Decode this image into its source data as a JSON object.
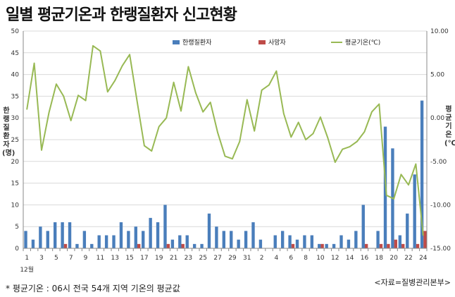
{
  "title": "일별 평균기온과 한랭질환자 신고현황",
  "left_axis_title": "한랭질환자(명)",
  "right_axis_title": "평균기온(℃)",
  "footnote": "* 평균기온 : 06시 전국 54개 지역 기온의 평균값",
  "source": "<자료=질병관리본부>",
  "month_label": "12월",
  "colors": {
    "patients": "#4a7ebb",
    "deaths": "#be4b48",
    "temperature": "#98b954",
    "axis": "#888888",
    "grid": "#d9d9d9"
  },
  "chart_data": {
    "type": "bar",
    "title": "일별 평균기온과 한랭질환자 신고현황",
    "xlabel": "",
    "ylabel": "한랭질환자(명)",
    "y2label": "평균기온(℃)",
    "ylim": [
      0,
      50
    ],
    "y2lim": [
      -15,
      10
    ],
    "yticks": [
      "0",
      "5",
      "10",
      "15",
      "20",
      "25",
      "30",
      "35",
      "40",
      "45",
      "50"
    ],
    "y2ticks": [
      "-15.00",
      "-10.00",
      "-5.00",
      "0.00",
      "5.00",
      "10.00"
    ],
    "categories": [
      "1",
      "2",
      "3",
      "4",
      "5",
      "6",
      "7",
      "8",
      "9",
      "10",
      "11",
      "12",
      "13",
      "14",
      "15",
      "16",
      "17",
      "18",
      "19",
      "20",
      "21",
      "22",
      "23",
      "24",
      "25",
      "26",
      "27",
      "28",
      "29",
      "30",
      "31",
      "1",
      "2",
      "3",
      "4",
      "5",
      "6",
      "7",
      "8",
      "9",
      "10",
      "11",
      "12",
      "13",
      "14",
      "15",
      "16",
      "17",
      "18",
      "19",
      "20",
      "21",
      "22",
      "23",
      "24"
    ],
    "xtick_labels": [
      "1",
      "3",
      "5",
      "7",
      "9",
      "11",
      "13",
      "15",
      "17",
      "19",
      "21",
      "23",
      "25",
      "27",
      "29",
      "31",
      "2",
      "4",
      "6",
      "8",
      "10",
      "12",
      "14",
      "16",
      "18",
      "20",
      "22",
      "24"
    ],
    "legend": [
      "한랭질환자",
      "사망자",
      "평균기온(℃)"
    ],
    "legend_position": "top-right",
    "series": [
      {
        "name": "한랭질환자",
        "type": "bar",
        "axis": "left",
        "values": [
          4,
          2,
          5,
          4,
          6,
          6,
          6,
          1,
          4,
          1,
          3,
          3,
          3,
          6,
          4,
          5,
          4,
          7,
          6,
          10,
          2,
          3,
          3,
          1,
          1,
          8,
          5,
          4,
          4,
          2,
          4,
          6,
          2,
          0,
          3,
          4,
          3,
          2,
          3,
          3,
          1,
          1,
          1,
          3,
          2,
          4,
          10,
          0,
          4,
          28,
          23,
          3,
          8,
          17,
          34
        ]
      },
      {
        "name": "사망자",
        "type": "bar",
        "axis": "left",
        "values": [
          0,
          0,
          0,
          0,
          0,
          1,
          0,
          0,
          0,
          0,
          0,
          0,
          0,
          0,
          0,
          1,
          0,
          0,
          0,
          1,
          0,
          1,
          0,
          0,
          0,
          0,
          0,
          0,
          0,
          0,
          0,
          0,
          0,
          0,
          0,
          0,
          1,
          0,
          0,
          0,
          1,
          0,
          0,
          0,
          0,
          0,
          1,
          0,
          1,
          1,
          2,
          1,
          0,
          1,
          4
        ]
      },
      {
        "name": "평균기온(℃)",
        "type": "line",
        "axis": "right",
        "values": [
          1.0,
          6.3,
          -3.7,
          0.6,
          3.9,
          2.5,
          -0.3,
          2.6,
          2.0,
          8.3,
          7.7,
          3.0,
          4.3,
          6.0,
          7.3,
          2.0,
          -3.2,
          -3.8,
          -1.0,
          0.0,
          4.1,
          0.8,
          5.9,
          2.9,
          0.7,
          1.8,
          -1.7,
          -4.4,
          -4.7,
          -2.7,
          2.1,
          -1.5,
          3.2,
          3.8,
          5.4,
          0.5,
          -2.2,
          -0.5,
          -2.5,
          -1.8,
          0.1,
          -2.3,
          -5.1,
          -3.6,
          -3.3,
          -2.7,
          -1.6,
          0.7,
          1.6,
          -8.9,
          -9.3,
          -6.5,
          -7.7,
          -5.3,
          -13.5
        ]
      }
    ]
  }
}
